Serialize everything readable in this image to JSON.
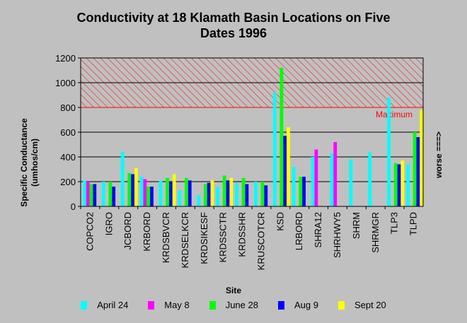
{
  "chart_data": {
    "type": "bar",
    "title_line1": "Conductivity at 18 Klamath Basin Locations on Five",
    "title_line2": "Dates 1996",
    "xlabel": "Site",
    "ylabel_line1": "Specific Conductance",
    "ylabel_line2": "(umhos/cm)",
    "right_label": "worse ===>",
    "ylim": [
      0,
      1200
    ],
    "yticks": [
      "0",
      "200",
      "400",
      "600",
      "800",
      "1000",
      "1200"
    ],
    "grid": true,
    "threshold": {
      "value": 800,
      "label": "Maximum",
      "color": "#ff0000"
    },
    "categories": [
      "COPCO2",
      "IGRO",
      "JCBORD",
      "KRBORD",
      "KRDSBVCR",
      "KRDSELKCR",
      "KRDSIKESF",
      "KRDSSCTR",
      "KRDSSHR",
      "KRUSCOTCR",
      "KSD",
      "LRBORD",
      "SHRA12",
      "SHRHWY5",
      "SHRM",
      "SHRMGR",
      "TLP3",
      "TLPD"
    ],
    "series": [
      {
        "name": "April 24",
        "color": "#00ffff",
        "values": [
          210,
          200,
          440,
          240,
          210,
          130,
          90,
          160,
          190,
          200,
          920,
          320,
          400,
          430,
          380,
          440,
          880,
          340
        ]
      },
      {
        "name": "May 8",
        "color": "#ff00ff",
        "values": [
          200,
          null,
          null,
          220,
          null,
          null,
          null,
          null,
          null,
          null,
          null,
          null,
          460,
          520,
          null,
          null,
          null,
          null
        ]
      },
      {
        "name": "June 28",
        "color": "#00ff00",
        "values": [
          180,
          200,
          270,
          160,
          230,
          230,
          180,
          250,
          230,
          200,
          1120,
          240,
          null,
          null,
          null,
          null,
          350,
          600
        ]
      },
      {
        "name": "Aug 9",
        "color": "#0000ff",
        "values": [
          180,
          160,
          260,
          160,
          200,
          210,
          190,
          210,
          180,
          170,
          570,
          240,
          null,
          null,
          null,
          null,
          340,
          560
        ]
      },
      {
        "name": "Sept 20",
        "color": "#ffff00",
        "values": [
          null,
          null,
          310,
          null,
          260,
          null,
          210,
          230,
          null,
          null,
          640,
          null,
          null,
          null,
          null,
          null,
          370,
          780
        ]
      }
    ]
  }
}
